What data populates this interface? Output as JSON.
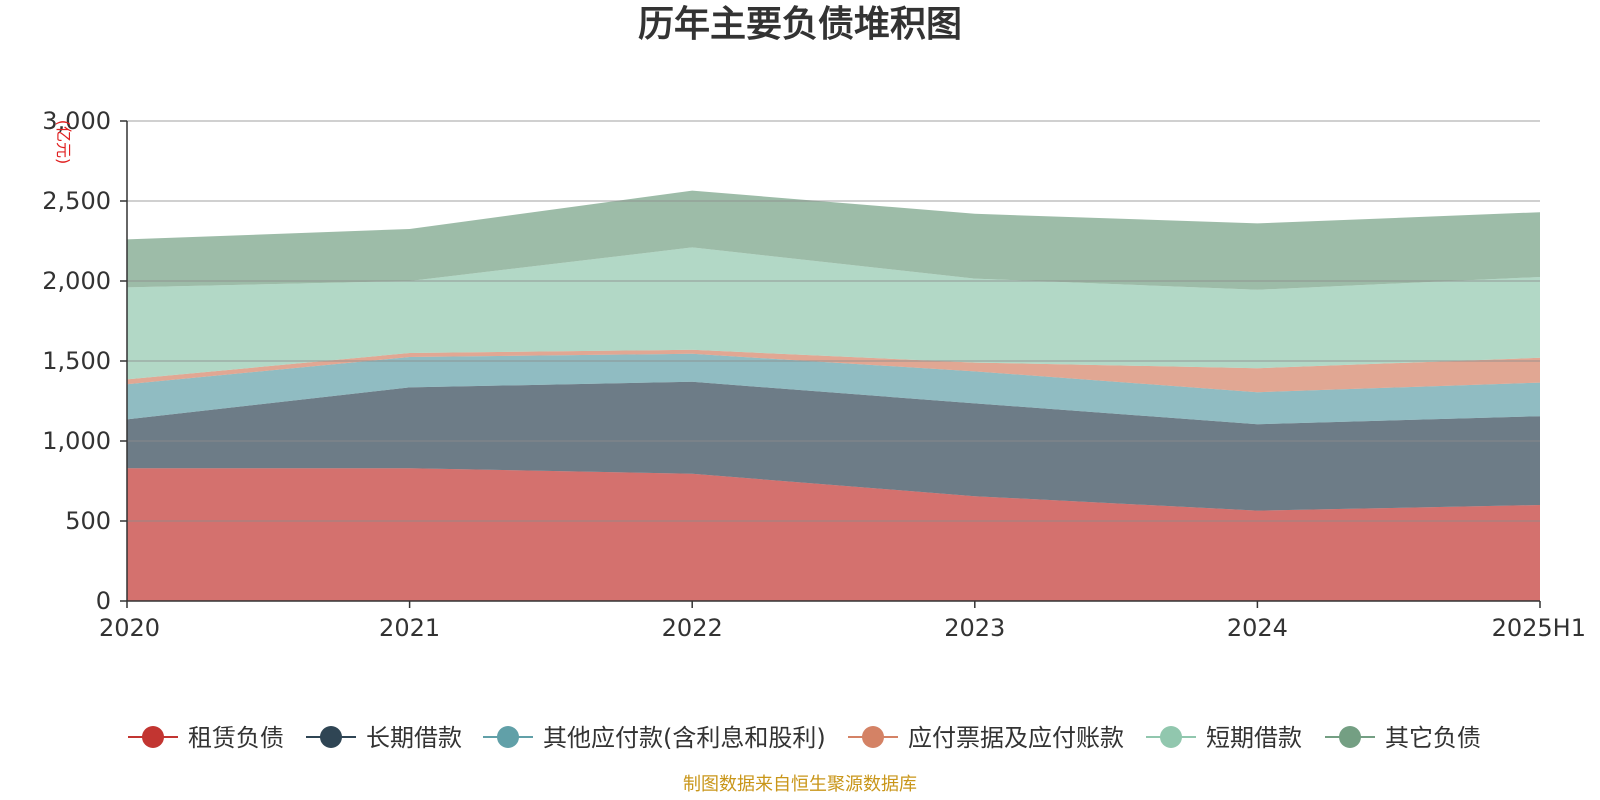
{
  "chart_data": {
    "type": "area",
    "stacked": true,
    "title": "历年主要负债堆积图",
    "unit": "(亿元)",
    "x": [
      "2020",
      "2021",
      "2022",
      "2023",
      "2024",
      "2025H1"
    ],
    "ylim": [
      0,
      3000
    ],
    "yticks": [
      0,
      500,
      1000,
      1500,
      2000,
      2500,
      3000
    ],
    "ytick_labels": [
      "0",
      "500",
      "1,000",
      "1,500",
      "2,000",
      "2,500",
      "3,000"
    ],
    "grid": true,
    "legend_position": "bottom",
    "series": [
      {
        "name": "租赁负债",
        "color": "#c23531",
        "values": [
          830,
          830,
          795,
          655,
          565,
          600
        ]
      },
      {
        "name": "长期借款",
        "color": "#2f4554",
        "values": [
          305,
          505,
          575,
          580,
          540,
          555
        ]
      },
      {
        "name": "其他应付款(含利息和股利)",
        "color": "#61a0a8",
        "values": [
          220,
          190,
          175,
          200,
          200,
          210
        ]
      },
      {
        "name": "应付票据及应付账款",
        "color": "#d48265",
        "values": [
          30,
          25,
          25,
          55,
          150,
          155
        ]
      },
      {
        "name": "短期借款",
        "color": "#91c7ae",
        "values": [
          575,
          450,
          640,
          525,
          490,
          505
        ]
      },
      {
        "name": "其它负债",
        "color": "#749f83",
        "values": [
          300,
          325,
          355,
          405,
          415,
          405
        ]
      }
    ],
    "source": "制图数据来自恒生聚源数据库"
  }
}
